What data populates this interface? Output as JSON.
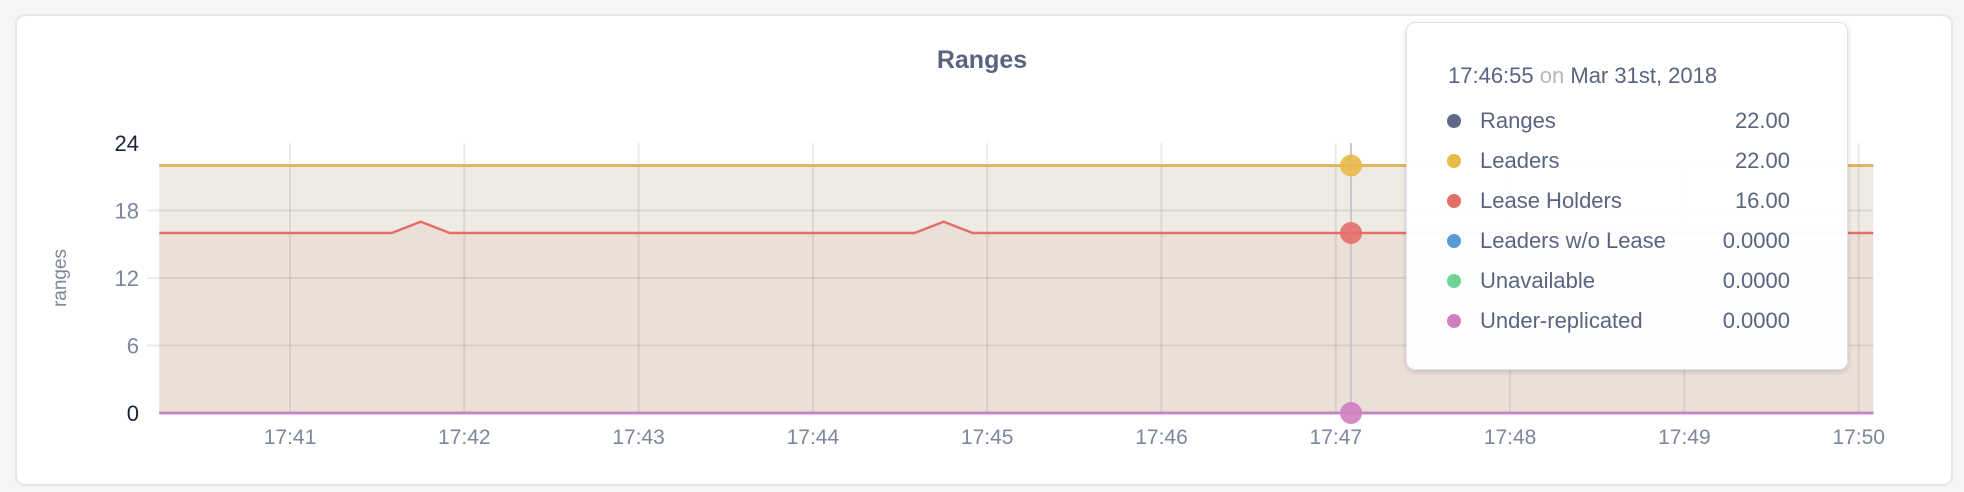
{
  "chart_data": {
    "type": "area",
    "title": "Ranges",
    "ylabel": "ranges",
    "xlabel": "",
    "ylim": [
      0,
      24
    ],
    "yticks": [
      "0",
      "6",
      "12",
      "18",
      "24"
    ],
    "xticks": [
      "17:41",
      "17:42",
      "17:43",
      "17:44",
      "17:45",
      "17:46",
      "17:47",
      "17:48",
      "17:49",
      "17:50"
    ],
    "xrange": [
      "17:40:15",
      "17:50:05"
    ],
    "grid": true,
    "series": [
      {
        "name": "Ranges",
        "color": "#5f6b86",
        "points": [
          [
            "17:40:15",
            22
          ],
          [
            "17:50:05",
            22
          ]
        ]
      },
      {
        "name": "Leaders",
        "color": "#e9b949",
        "fill": "#eeebe4",
        "points": [
          [
            "17:40:15",
            22
          ],
          [
            "17:50:05",
            22
          ]
        ]
      },
      {
        "name": "Lease Holders",
        "color": "#e36f69",
        "fill": "#ecdfd8",
        "points": [
          [
            "17:40:15",
            16
          ],
          [
            "17:41:35",
            16
          ],
          [
            "17:41:45",
            17
          ],
          [
            "17:41:55",
            16
          ],
          [
            "17:44:35",
            16
          ],
          [
            "17:44:45",
            17
          ],
          [
            "17:44:55",
            16
          ],
          [
            "17:50:05",
            16
          ]
        ]
      },
      {
        "name": "Leaders w/o Lease",
        "color": "#5b9bd5",
        "points": [
          [
            "17:40:15",
            0
          ],
          [
            "17:50:05",
            0
          ]
        ]
      },
      {
        "name": "Unavailable",
        "color": "#6fd394",
        "points": [
          [
            "17:40:15",
            0
          ],
          [
            "17:50:05",
            0
          ]
        ]
      },
      {
        "name": "Under-replicated",
        "color": "#cf7fc1",
        "points": [
          [
            "17:40:15",
            0
          ],
          [
            "17:50:05",
            0
          ]
        ]
      }
    ]
  },
  "tooltip": {
    "time": "17:46:55",
    "on": "on",
    "date": "Mar 31st, 2018",
    "rows": [
      {
        "label": "Ranges",
        "value": "22.00",
        "color": "#5f6b86"
      },
      {
        "label": "Leaders",
        "value": "22.00",
        "color": "#e9b949"
      },
      {
        "label": "Lease Holders",
        "value": "16.00",
        "color": "#e36f69"
      },
      {
        "label": "Leaders w/o Lease",
        "value": "0.0000",
        "color": "#5b9bd5"
      },
      {
        "label": "Unavailable",
        "value": "0.0000",
        "color": "#6fd394"
      },
      {
        "label": "Under-replicated",
        "value": "0.0000",
        "color": "#cf7fc1"
      }
    ]
  }
}
